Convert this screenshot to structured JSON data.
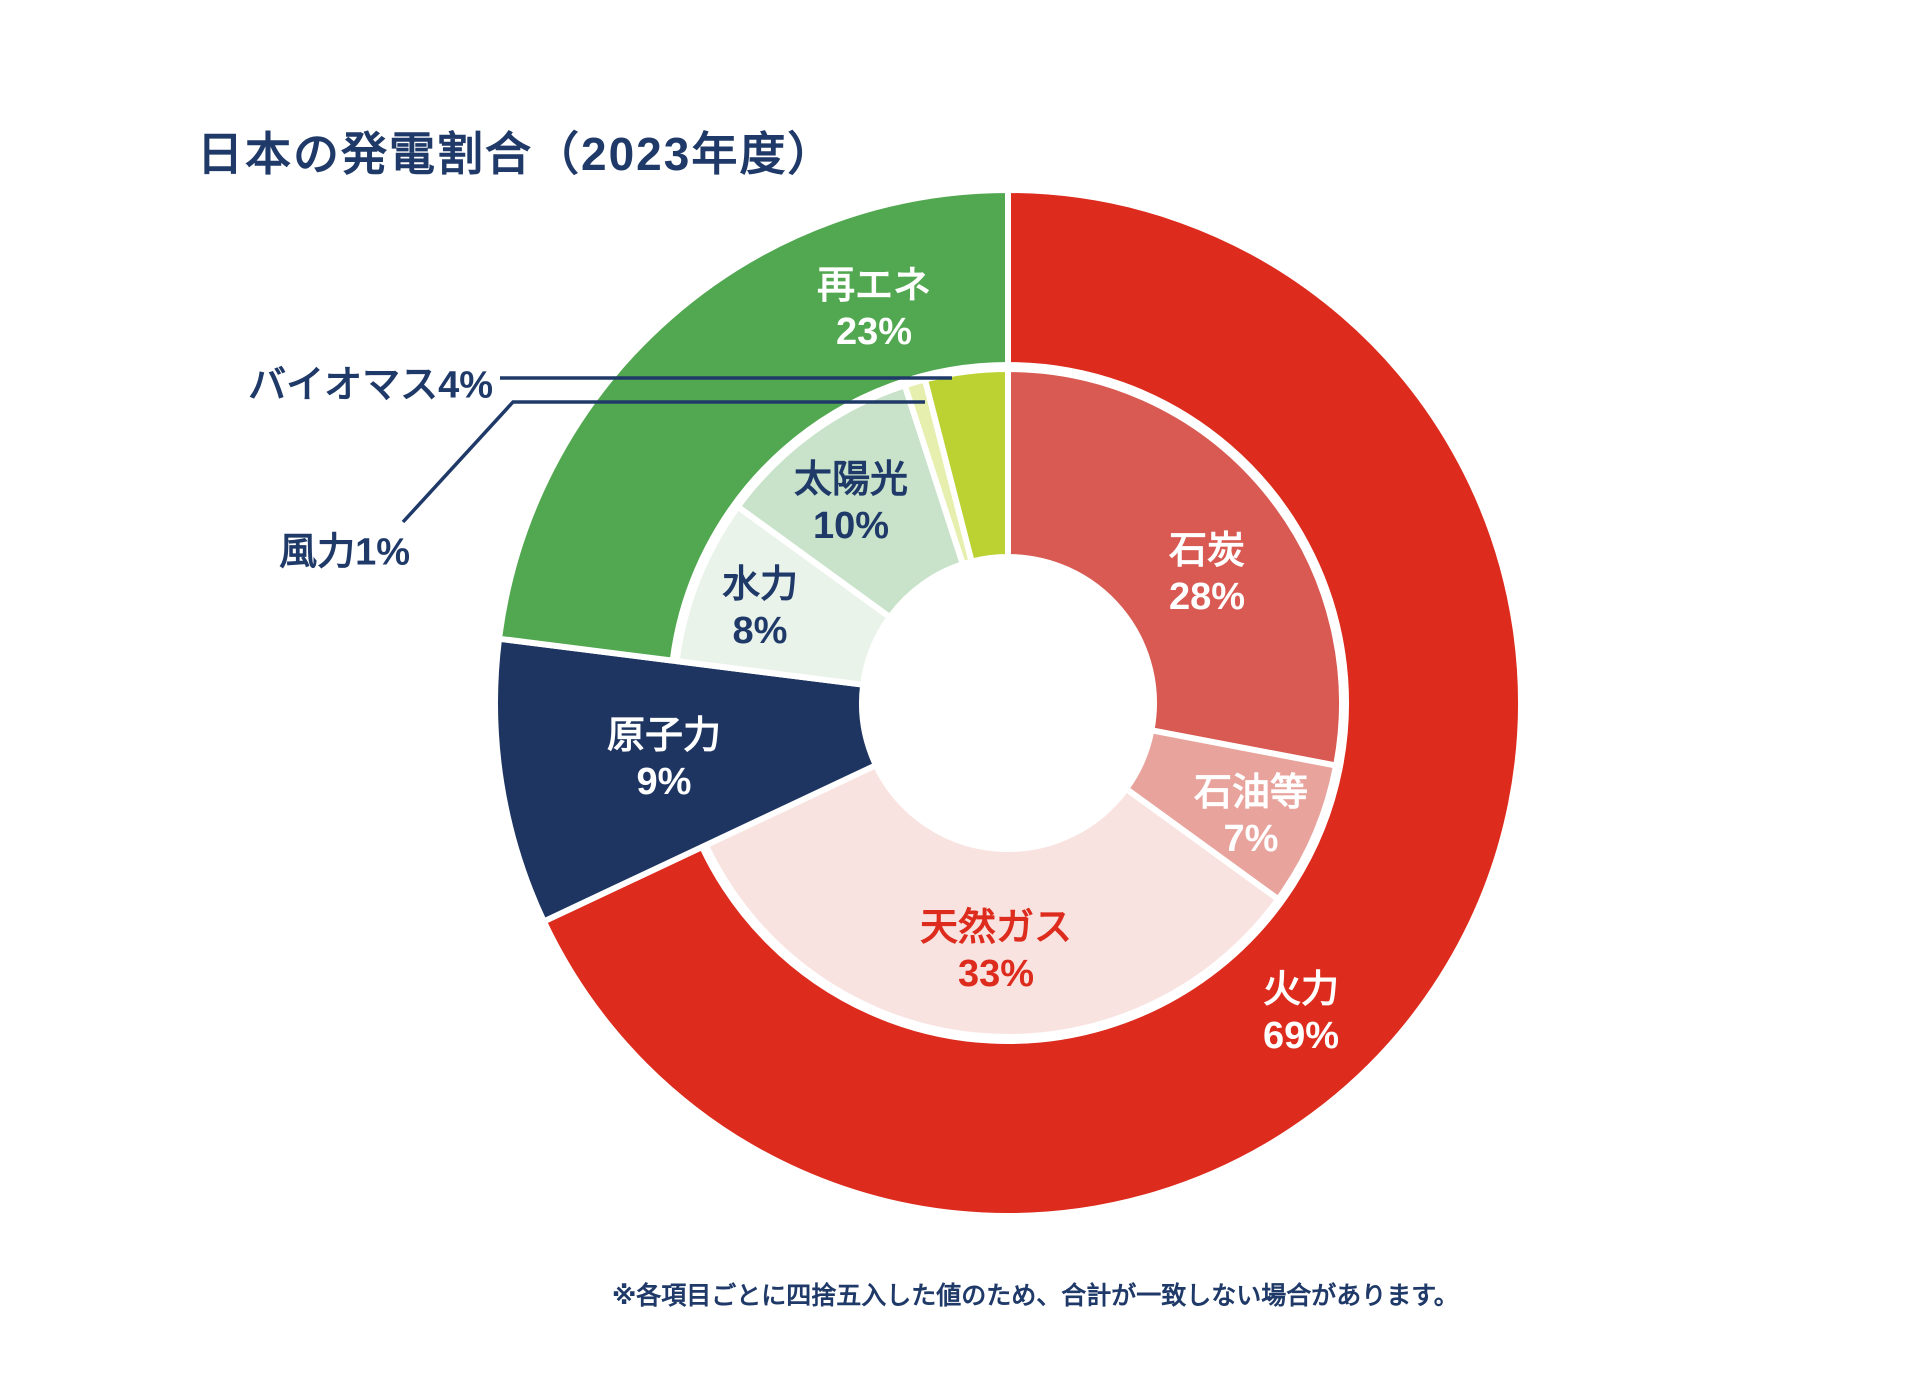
{
  "page": {
    "background": "#FFFFFF"
  },
  "title": "日本の発電割合（2023年度）",
  "footnote": "※各項目ごとに四捨五入した値のため、合計が一致しない場合があります。",
  "colors": {
    "text_navy": "#1F3A68",
    "accent_red": "#DD2B1D",
    "leader_line": "#1F3A68",
    "label_white": "#FFFFFF"
  },
  "chart_data": {
    "type": "pie",
    "subtype": "two-level-donut",
    "title": "日本の発電割合（2023年度）",
    "unit": "%",
    "start_angle_deg": 0,
    "direction": "clockwise",
    "outer_ring": [
      {
        "id": "thermal",
        "label": "火力",
        "pct": 69,
        "pct_label": "69%",
        "color": "#DD2B1D",
        "text_color": "#FFFFFF",
        "children": [
          "石炭",
          "石油等",
          "天然ガス"
        ]
      },
      {
        "id": "nuclear",
        "label": "原子力",
        "pct": 9,
        "pct_label": "9%",
        "color": "#1E3562",
        "text_color": "#FFFFFF",
        "children": []
      },
      {
        "id": "renewable",
        "label": "再エネ",
        "pct": 23,
        "pct_label": "23%",
        "color": "#52A850",
        "text_color": "#FFFFFF",
        "children": [
          "水力",
          "太陽光",
          "風力",
          "バイオマス"
        ]
      }
    ],
    "inner_ring": [
      {
        "id": "coal",
        "label": "石炭",
        "pct": 28,
        "pct_label": "28%",
        "color": "#D85A52",
        "text_color": "#FFFFFF"
      },
      {
        "id": "oil",
        "label": "石油等",
        "pct": 7,
        "pct_label": "7%",
        "color": "#E8A39C",
        "text_color": "#FFFFFF"
      },
      {
        "id": "gas",
        "label": "天然ガス",
        "pct": 33,
        "pct_label": "33%",
        "color": "#F9E3E0",
        "text_color": "#DD2B1D"
      },
      {
        "id": "hydro",
        "label": "水力",
        "pct": 8,
        "pct_label": "8%",
        "color": "#EAF3EA",
        "text_color": "#1F3A68"
      },
      {
        "id": "solar",
        "label": "太陽光",
        "pct": 10,
        "pct_label": "10%",
        "color": "#C9E2CA",
        "text_color": "#1F3A68"
      },
      {
        "id": "wind",
        "label": "風力",
        "pct": 1,
        "pct_label": "1%",
        "color": "#E6EFAD",
        "text_color": "#1F3A68"
      },
      {
        "id": "biomass",
        "label": "バイオマス",
        "pct": 4,
        "pct_label": "4%",
        "color": "#BCD232",
        "text_color": "#1F3A68"
      }
    ],
    "callouts": [
      {
        "for": "バイオマス",
        "text": "バイオマス4%"
      },
      {
        "for": "風力",
        "text": "風力1%"
      }
    ]
  }
}
